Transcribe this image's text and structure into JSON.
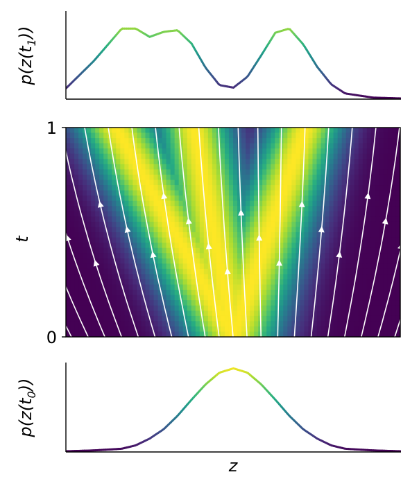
{
  "chart_data": [
    {
      "type": "line",
      "title": "",
      "xlabel": "",
      "ylabel": "p(z(t1))",
      "ylabel_main": "p(z(t",
      "ylabel_sub": "1",
      "ylabel_close": "))",
      "x_range": [
        -3,
        3
      ],
      "ylim": [
        0,
        1
      ],
      "colormap": "viridis",
      "x": [
        -3.0,
        -2.5,
        -2.0,
        -1.75,
        -1.5,
        -1.25,
        -1.0,
        -0.75,
        -0.5,
        -0.25,
        0.0,
        0.25,
        0.5,
        0.75,
        1.0,
        1.25,
        1.5,
        1.75,
        2.0,
        2.5,
        3.0
      ],
      "values": [
        0.12,
        0.45,
        0.84,
        0.84,
        0.74,
        0.8,
        0.82,
        0.66,
        0.37,
        0.16,
        0.13,
        0.26,
        0.52,
        0.79,
        0.84,
        0.65,
        0.38,
        0.17,
        0.06,
        0.01,
        0.0
      ]
    },
    {
      "type": "heatmap",
      "title": "",
      "xlabel": "",
      "ylabel": "t",
      "x_range": [
        -3,
        3
      ],
      "ylim": [
        0,
        1
      ],
      "yticks": [
        "0",
        "1"
      ],
      "colormap": "viridis",
      "density_at_t0": {
        "means": [
          0
        ],
        "sigmas": [
          0.6
        ]
      },
      "density_at_t1": {
        "means": [
          -2.1,
          -0.7,
          1.3
        ],
        "sigmas": [
          0.55,
          0.5,
          0.5
        ]
      },
      "streamlines": "white, flowing upward along the transport map from t=0 to t=1"
    },
    {
      "type": "line",
      "title": "",
      "xlabel": "z",
      "ylabel": "p(z(t0))",
      "ylabel_main": "p(z(t",
      "ylabel_sub": "0",
      "ylabel_close": "))",
      "x_range": [
        -3,
        3
      ],
      "ylim": [
        0,
        1
      ],
      "colormap": "viridis",
      "x": [
        -3.0,
        -2.5,
        -2.0,
        -1.75,
        -1.5,
        -1.25,
        -1.0,
        -0.75,
        -0.5,
        -0.25,
        0.0,
        0.25,
        0.5,
        0.75,
        1.0,
        1.25,
        1.5,
        1.75,
        2.0,
        2.5,
        3.0
      ],
      "values": [
        0.0,
        0.01,
        0.03,
        0.07,
        0.15,
        0.26,
        0.42,
        0.61,
        0.79,
        0.93,
        0.98,
        0.93,
        0.79,
        0.61,
        0.42,
        0.26,
        0.15,
        0.07,
        0.03,
        0.01,
        0.0
      ]
    }
  ]
}
